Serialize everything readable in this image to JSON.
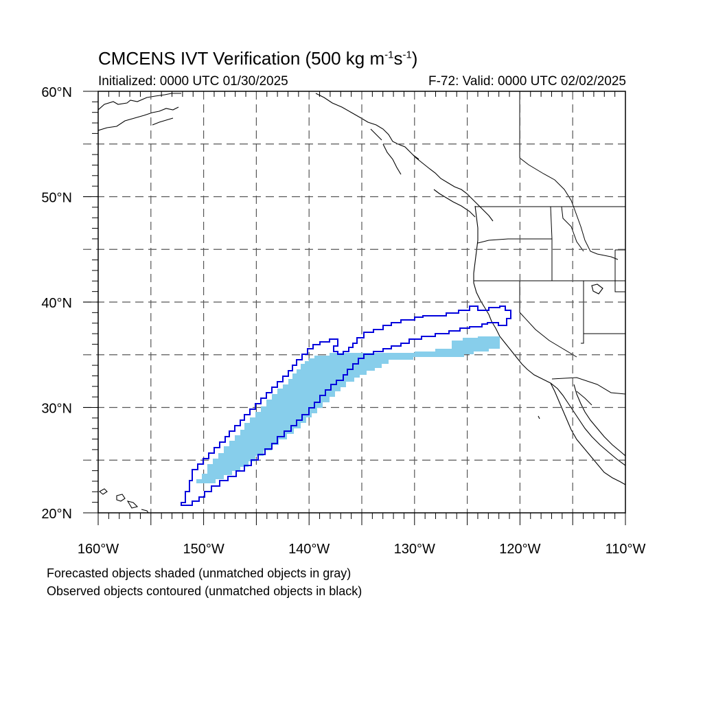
{
  "title": {
    "prefix": "CMCENS IVT Verification (500 kg m",
    "exp1": "-1",
    "mid": "s",
    "exp2": "-1",
    "suffix": ")"
  },
  "initialized": "Initialized: 0000 UTC 01/30/2025",
  "valid": "F-72: Valid: 0000 UTC 02/02/2025",
  "map": {
    "lon_range": [
      -160,
      -110
    ],
    "lat_range": [
      20,
      60
    ],
    "grid_lon": [
      -155,
      -150,
      -145,
      -140,
      -135,
      -130,
      -125,
      -120,
      -115
    ],
    "grid_lat": [
      25,
      30,
      35,
      40,
      45,
      50,
      55
    ],
    "lat_labels": [
      {
        "lat": 60,
        "label": "60°N"
      },
      {
        "lat": 50,
        "label": "50°N"
      },
      {
        "lat": 40,
        "label": "40°N"
      },
      {
        "lat": 30,
        "label": "30°N"
      },
      {
        "lat": 20,
        "label": "20°N"
      }
    ],
    "lon_labels": [
      {
        "lon": -160,
        "label": "160°W"
      },
      {
        "lon": -150,
        "label": "150°W"
      },
      {
        "lon": -140,
        "label": "140°W"
      },
      {
        "lon": -130,
        "label": "130°W"
      },
      {
        "lon": -120,
        "label": "120°W"
      },
      {
        "lon": -110,
        "label": "110°W"
      }
    ],
    "forecast_object_color": "#87ceeb",
    "observed_contour_color": "#0000dd",
    "grid_color": "#555555"
  },
  "notes": {
    "line1": "Forecasted objects shaded (unmatched objects in gray)",
    "line2": "Observed objects contoured (unmatched objects in black)"
  }
}
